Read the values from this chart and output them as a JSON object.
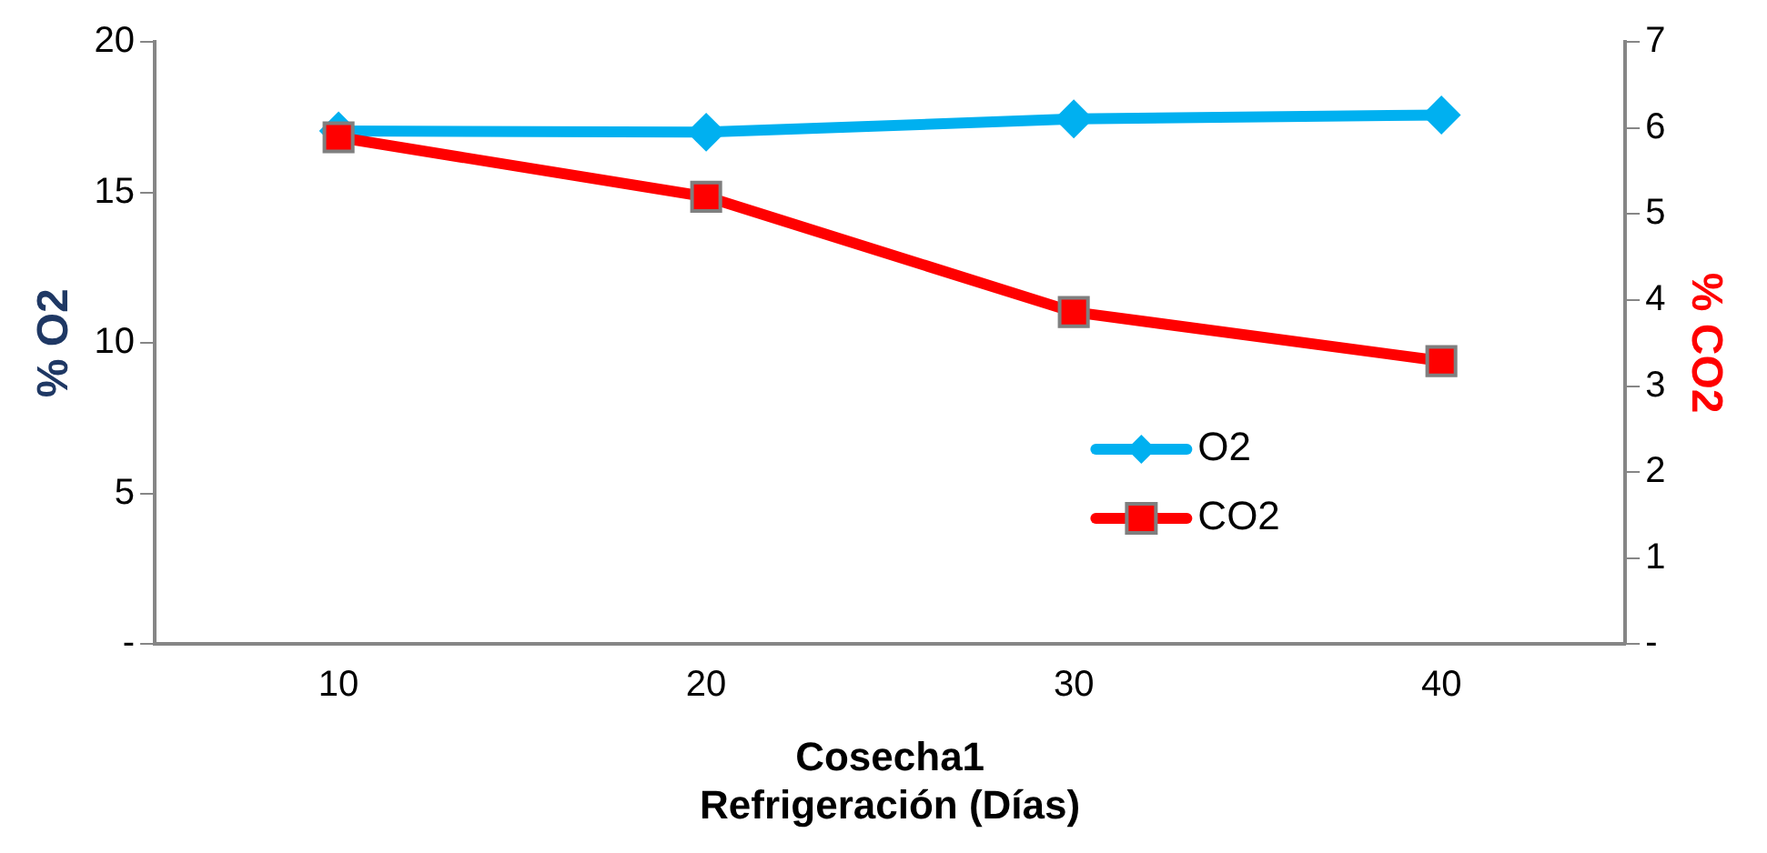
{
  "chart_data": {
    "type": "line",
    "xlabel": "Cosecha1\nRefrigeración (Días)",
    "ylabel": "% O2",
    "y2label": "% CO2",
    "categories": [
      "10",
      "20",
      "30",
      "40"
    ],
    "series": [
      {
        "name": "O2",
        "color": "#00b0f0",
        "values": [
          17.04,
          17.0,
          17.44,
          17.57
        ],
        "marker": "diamond"
      },
      {
        "name": "CO2",
        "color": "#ff0000",
        "values": [
          5.89,
          5.2,
          3.86,
          3.29
        ],
        "axis": "y2",
        "marker": "square"
      }
    ],
    "ylim": [
      0,
      20
    ],
    "yticks": [
      {
        "value": 0,
        "label": "-"
      },
      5,
      10,
      15,
      20
    ],
    "y2lim": [
      0,
      7
    ],
    "y2ticks": [
      {
        "value": 0,
        "label": "-"
      },
      1,
      2,
      3,
      4,
      5,
      6,
      7
    ],
    "grid": false,
    "legend": "bottom right"
  }
}
